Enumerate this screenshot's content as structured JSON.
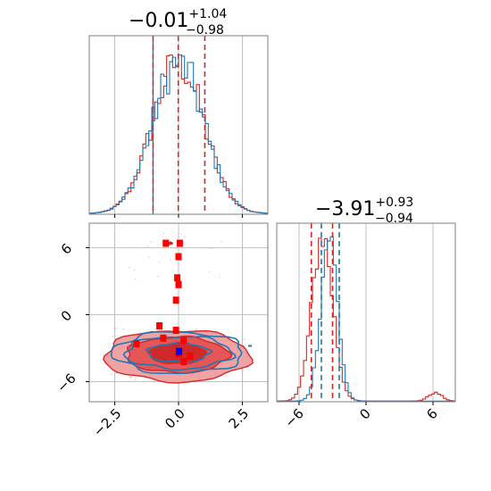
{
  "chart_data": [
    {
      "panel": "marginal-x",
      "type": "histogram",
      "title": {
        "value": "−0.01",
        "sup": "+1.04",
        "sub": "−0.98"
      },
      "xlim": [
        -3.5,
        3.5
      ],
      "grid": true,
      "quantile_lines": {
        "red": [
          -1.0,
          -0.01,
          1.03
        ],
        "blue": [
          -1.0
        ]
      },
      "series": [
        {
          "color": "#d62728",
          "profile": "gaussian",
          "center": -0.01,
          "sigma": 1.0
        },
        {
          "color": "#1f77b4",
          "profile": "gaussian",
          "center": -0.01,
          "sigma": 1.0
        }
      ]
    },
    {
      "panel": "marginal-y",
      "type": "histogram",
      "title": {
        "value": "−3.91",
        "sup": "+0.93",
        "sub": "−0.94"
      },
      "xlim": [
        -8,
        8
      ],
      "xticks": [
        -6,
        0,
        6
      ],
      "xtick_labels": [
        "−6",
        "0",
        "6"
      ],
      "grid": true,
      "quantile_lines": {
        "red": [
          -4.9,
          -3.0
        ],
        "blue": [
          -4.0,
          -2.4
        ]
      },
      "series": [
        {
          "color": "#d62728",
          "profile": "gaussian",
          "center": -3.91,
          "sigma": 0.93,
          "secondary_bump": 6.2
        },
        {
          "color": "#1f77b4",
          "profile": "gaussian",
          "center": -3.3,
          "sigma": 0.75
        }
      ]
    },
    {
      "panel": "joint",
      "type": "contour",
      "xlim": [
        -3.5,
        3.5
      ],
      "ylim": [
        -7.8,
        8.2
      ],
      "xticks": [
        -2.5,
        0.0,
        2.5
      ],
      "xtick_labels": [
        "−2.5",
        "0.0",
        "2.5"
      ],
      "yticks": [
        -6,
        0,
        6
      ],
      "ytick_labels": [
        "−6",
        "0",
        "6"
      ],
      "grid": true,
      "red_contours": [
        {
          "cx": -0.05,
          "cy": -3.5,
          "rx": 1.1,
          "ry": 0.9
        },
        {
          "cx": -0.05,
          "cy": -3.6,
          "rx": 2.0,
          "ry": 1.6
        },
        {
          "cx": -0.05,
          "cy": -3.7,
          "rx": 2.85,
          "ry": 2.3
        }
      ],
      "blue_contours": [
        {
          "cx": 0.0,
          "cy": -3.4,
          "rx": 1.2,
          "ry": 0.85
        },
        {
          "cx": 0.0,
          "cy": -3.4,
          "rx": 2.1,
          "ry": 1.45
        },
        {
          "cx": 0.0,
          "cy": -3.4,
          "rx": 2.55,
          "ry": 1.85
        }
      ],
      "red_points": [
        [
          -0.5,
          6.4
        ],
        [
          0.05,
          6.4
        ],
        [
          0.0,
          5.2
        ],
        [
          -0.05,
          3.3
        ],
        [
          0.0,
          2.7
        ],
        [
          -0.1,
          1.3
        ],
        [
          -0.75,
          -1.0
        ],
        [
          -0.1,
          -1.4
        ],
        [
          0.2,
          -2.3
        ],
        [
          -0.6,
          -2.1
        ],
        [
          -1.65,
          -2.6
        ],
        [
          0.0,
          -3.5
        ],
        [
          0.45,
          -3.7
        ],
        [
          0.2,
          -4.2
        ]
      ],
      "blue_points": [
        [
          0.02,
          -3.3
        ]
      ],
      "blue_outliers": [
        [
          2.8,
          -2.8
        ]
      ]
    }
  ]
}
